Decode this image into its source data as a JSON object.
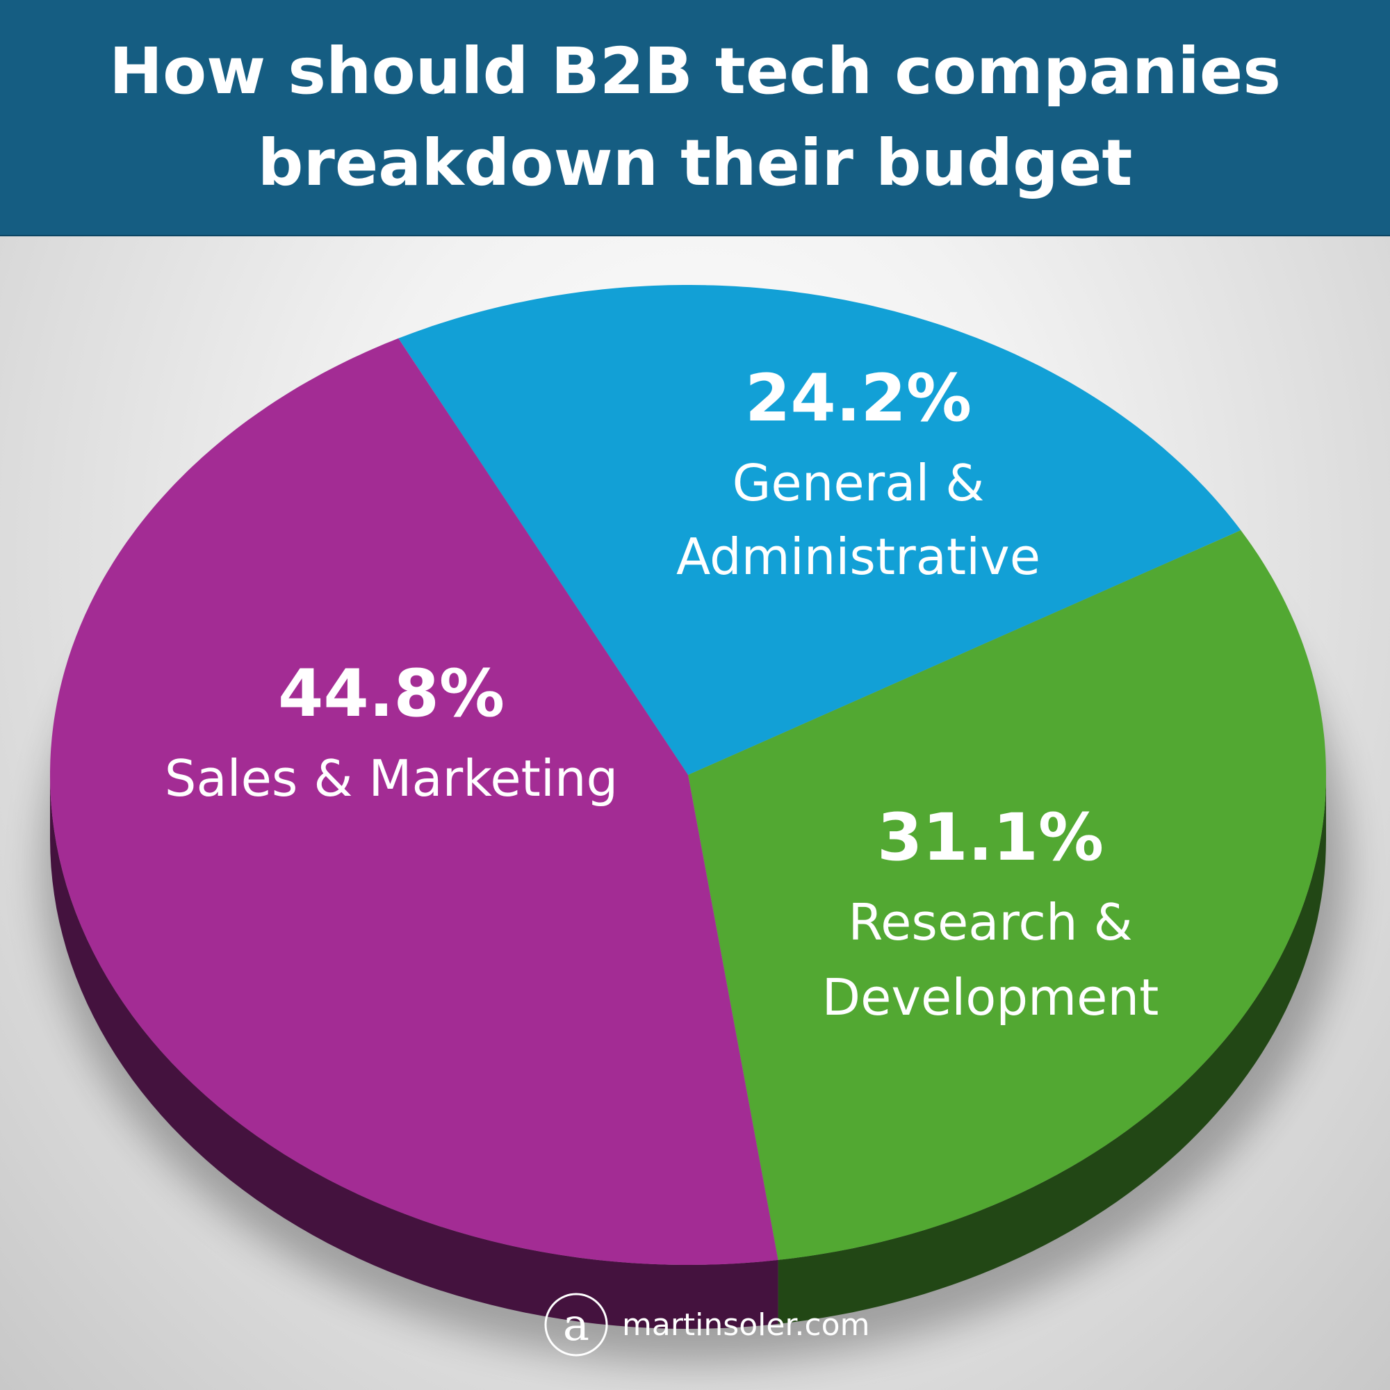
{
  "title": {
    "lines": [
      "How should B2B tech companies",
      "breakdown their budget"
    ]
  },
  "colors": {
    "header_bg": "#155d82",
    "sales_marketing": "#a32c94",
    "general_admin": "#12a0d6",
    "research_dev": "#52a832"
  },
  "chart_data": {
    "type": "pie",
    "title": "How should B2B tech companies breakdown their budget",
    "slices": [
      {
        "label": "General & Administrative",
        "label_lines": [
          "General &",
          "Administrative"
        ],
        "value": 24.2,
        "value_label": "24.2%",
        "color": "#12a0d6"
      },
      {
        "label": "Research & Development",
        "label_lines": [
          "Research &",
          "Development"
        ],
        "value": 31.1,
        "value_label": "31.1%",
        "color": "#52a832"
      },
      {
        "label": "Sales & Marketing",
        "label_lines": [
          "Sales & Marketing"
        ],
        "value": 44.8,
        "value_label": "44.8%",
        "color": "#a32c94"
      }
    ],
    "legend": "none",
    "style": "3d"
  },
  "brand": {
    "mark": "a",
    "text": "martinsoler.com",
    "icon": "martinsoler-logo-icon"
  }
}
